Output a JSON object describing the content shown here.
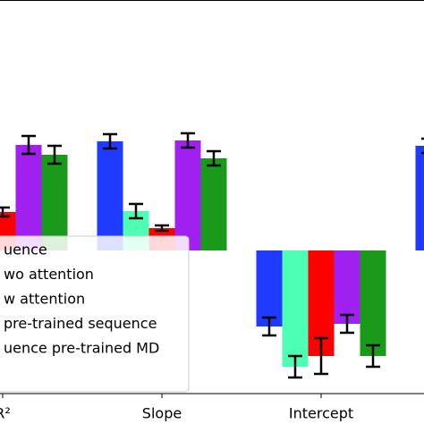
{
  "chart_data": {
    "type": "bar",
    "categories": [
      "R²",
      "Slope",
      "Intercept",
      null
    ],
    "series": [
      {
        "name": "uence",
        "color": "#1f3bff",
        "values": [
          null,
          1.22,
          -0.85,
          1.17
        ],
        "errors": [
          null,
          0.08,
          0.1,
          0.08
        ]
      },
      {
        "name": "wo attention",
        "color": "#4dffb4",
        "values": [
          null,
          0.44,
          -1.3,
          null
        ],
        "errors": [
          null,
          0.08,
          0.12,
          null
        ]
      },
      {
        "name": "w attention",
        "color": "#ff0000",
        "values": [
          0.43,
          0.25,
          -1.18,
          null
        ],
        "errors": [
          0.05,
          0.03,
          0.2,
          null
        ]
      },
      {
        "name": "pre-trained sequence",
        "color": "#a020f0",
        "values": [
          1.18,
          1.23,
          -0.82,
          null
        ],
        "errors": [
          0.1,
          0.08,
          0.1,
          null
        ]
      },
      {
        "name": "uence pre-trained MD",
        "color": "#1a9a1a",
        "values": [
          1.07,
          1.03,
          -1.18,
          null
        ],
        "errors": [
          0.1,
          0.08,
          0.12,
          null
        ]
      }
    ],
    "ylim": [
      -1.6,
      2.8
    ]
  }
}
